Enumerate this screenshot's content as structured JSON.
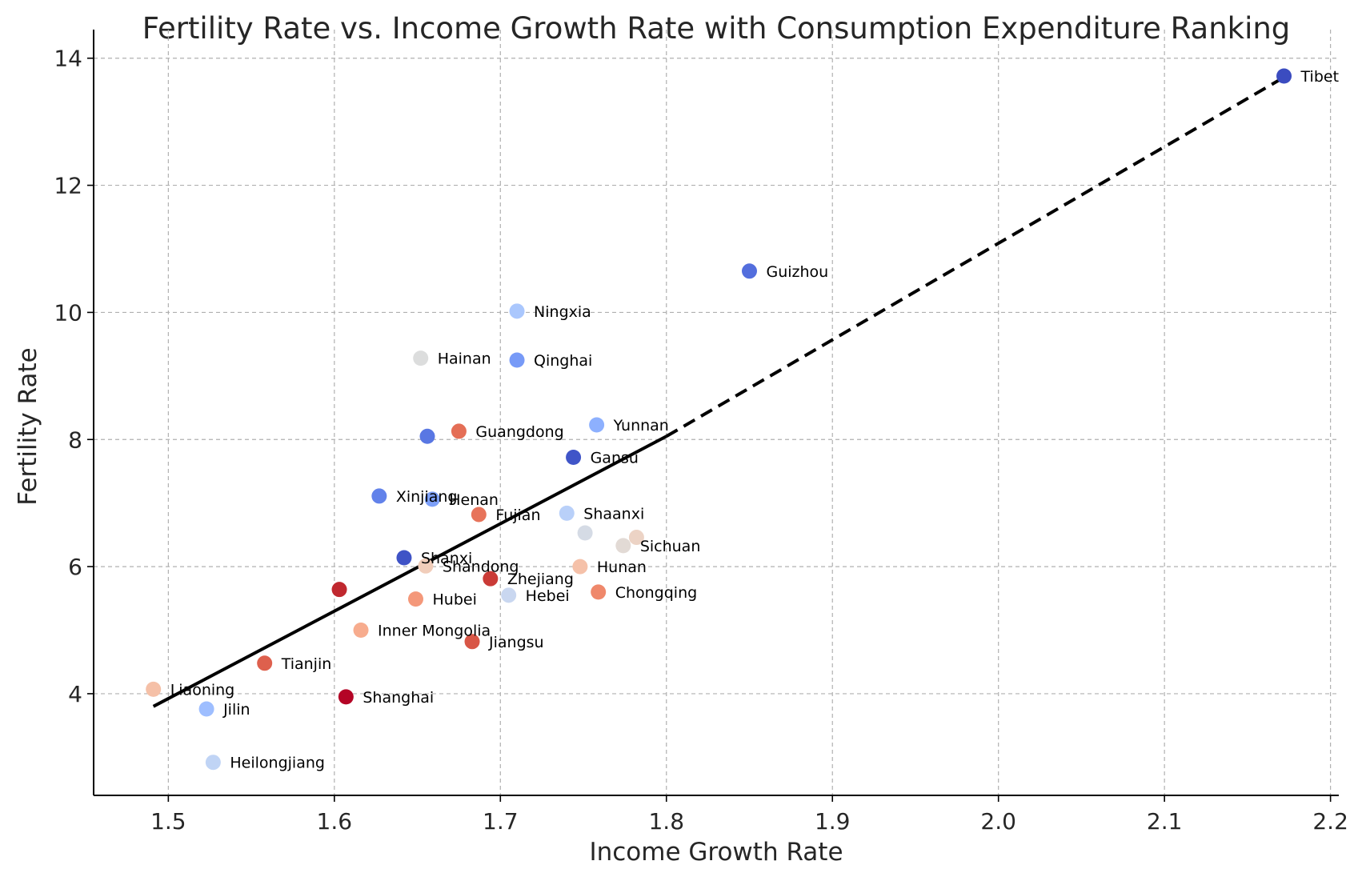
{
  "chart_data": {
    "type": "scatter",
    "title": "Fertility Rate vs. Income Growth Rate with Consumption Expenditure Ranking",
    "xlabel": "Income Growth Rate",
    "ylabel": "Fertility Rate",
    "xlim": [
      1.455,
      2.205
    ],
    "ylim": [
      2.4,
      14.45
    ],
    "xticks": [
      "1.5",
      "1.6",
      "1.7",
      "1.8",
      "1.9",
      "2.0",
      "2.1",
      "2.2"
    ],
    "yticks": [
      "4",
      "6",
      "8",
      "10",
      "12",
      "14"
    ],
    "grid": true,
    "colormap": "coolwarm",
    "points": [
      {
        "label": "Tibet",
        "x": 2.172,
        "y": 13.72,
        "color": "#3b4cc0"
      },
      {
        "label": "Guizhou",
        "x": 1.85,
        "y": 10.65,
        "color": "#536edd"
      },
      {
        "label": "Ningxia",
        "x": 1.71,
        "y": 10.02,
        "color": "#aac7fd"
      },
      {
        "label": "Hainan",
        "x": 1.652,
        "y": 9.28,
        "color": "#dcdddd"
      },
      {
        "label": "Qinghai",
        "x": 1.71,
        "y": 9.25,
        "color": "#779af7"
      },
      {
        "label": "Guangdong",
        "x": 1.675,
        "y": 8.13,
        "color": "#e46e56"
      },
      {
        "label": "",
        "x": 1.656,
        "y": 8.05,
        "color": "#5977e3"
      },
      {
        "label": "Yunnan",
        "x": 1.758,
        "y": 8.23,
        "color": "#8db0fe"
      },
      {
        "label": "Gansu",
        "x": 1.744,
        "y": 7.72,
        "color": "#4055c8"
      },
      {
        "label": "Xinjiang",
        "x": 1.627,
        "y": 7.11,
        "color": "#6282ea"
      },
      {
        "label": "Henan",
        "x": 1.659,
        "y": 7.06,
        "color": "#7da0f9"
      },
      {
        "label": "Fujian",
        "x": 1.687,
        "y": 6.82,
        "color": "#e7745b"
      },
      {
        "label": "Shaanxi",
        "x": 1.74,
        "y": 6.84,
        "color": "#b9d0f9"
      },
      {
        "label": "",
        "x": 1.751,
        "y": 6.53,
        "color": "#d5dbe5"
      },
      {
        "label": "",
        "x": 1.782,
        "y": 6.46,
        "color": "#ecd3c5"
      },
      {
        "label": "Sichuan",
        "x": 1.774,
        "y": 6.33,
        "color": "#e2dad5"
      },
      {
        "label": "Shanxi",
        "x": 1.642,
        "y": 6.14,
        "color": "#3f53c6"
      },
      {
        "label": "Shandong",
        "x": 1.655,
        "y": 6.01,
        "color": "#f1cdba"
      },
      {
        "label": "Hunan",
        "x": 1.748,
        "y": 6.0,
        "color": "#f5c1a9"
      },
      {
        "label": "Zhejiang",
        "x": 1.694,
        "y": 5.81,
        "color": "#ca3b37"
      },
      {
        "label": "",
        "x": 1.603,
        "y": 5.64,
        "color": "#c0282f"
      },
      {
        "label": "Chongqing",
        "x": 1.759,
        "y": 5.6,
        "color": "#ef886b"
      },
      {
        "label": "Hebei",
        "x": 1.705,
        "y": 5.55,
        "color": "#c9d7f0"
      },
      {
        "label": "Hubei",
        "x": 1.649,
        "y": 5.49,
        "color": "#f4987a"
      },
      {
        "label": "Inner Mongolia",
        "x": 1.616,
        "y": 5.0,
        "color": "#f7ac8e"
      },
      {
        "label": "Jiangsu",
        "x": 1.683,
        "y": 4.82,
        "color": "#d85646"
      },
      {
        "label": "Tianjin",
        "x": 1.558,
        "y": 4.48,
        "color": "#de604d"
      },
      {
        "label": "Liaoning",
        "x": 1.491,
        "y": 4.07,
        "color": "#f5c0a7"
      },
      {
        "label": "Shanghai",
        "x": 1.607,
        "y": 3.95,
        "color": "#b40426"
      },
      {
        "label": "Jilin",
        "x": 1.523,
        "y": 3.76,
        "color": "#9ebeff"
      },
      {
        "label": "Heilongjiang",
        "x": 1.527,
        "y": 2.92,
        "color": "#c0d4f5"
      }
    ],
    "trend_line": {
      "style": "dashed-after-1.8",
      "solid_segment": [
        [
          1.491,
          3.8
        ],
        [
          1.8,
          8.05
        ]
      ],
      "dashed_segment": [
        [
          1.8,
          8.05
        ],
        [
          2.172,
          13.7
        ]
      ],
      "color": "#000000"
    }
  }
}
